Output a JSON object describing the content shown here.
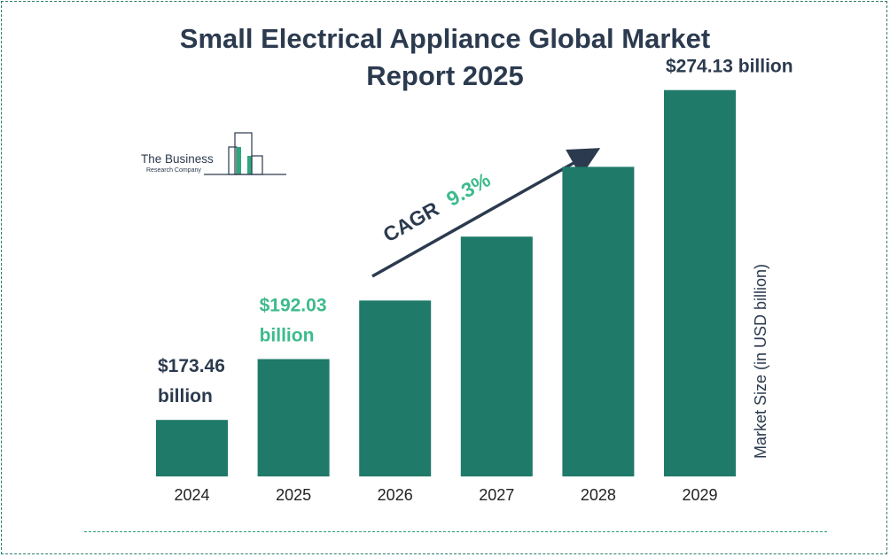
{
  "chart_data": {
    "type": "bar",
    "title": "Small Electrical Appliance Global Market",
    "title_line2": "Report 2025",
    "categories": [
      "2024",
      "2025",
      "2026",
      "2027",
      "2028",
      "2029"
    ],
    "values": [
      173.46,
      192.03,
      209.9,
      229.4,
      250.7,
      274.13
    ],
    "ylabel": "Market Size (in USD billion)",
    "annotations": [
      {
        "category": "2024",
        "line1": "$173.46",
        "line2": "billion",
        "color": "#2b3a4e"
      },
      {
        "category": "2025",
        "line1": "$192.03",
        "line2": "billion",
        "color": "#3dbb8c"
      },
      {
        "category": "2029",
        "line1": "$274.13 billion",
        "line2": "",
        "color": "#2b3a4e"
      }
    ],
    "cagr_label": "CAGR",
    "cagr_value": "9.3%",
    "bar_color": "#1f7a6a"
  },
  "logo": {
    "line1": "The Business",
    "line2": "Research Company"
  }
}
